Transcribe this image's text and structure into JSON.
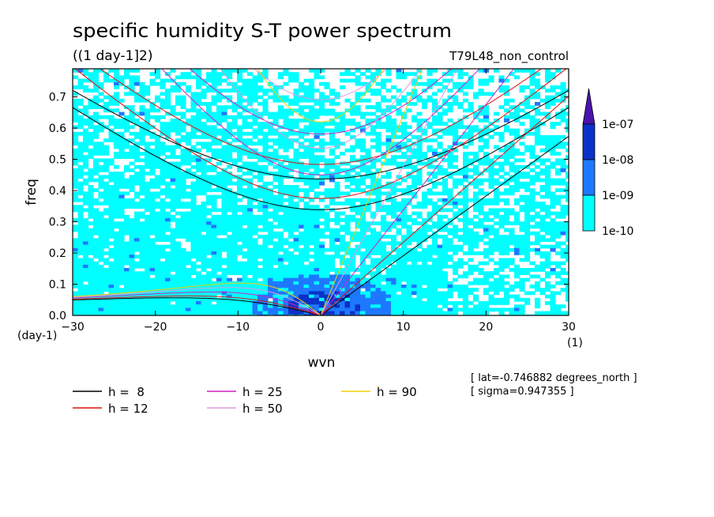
{
  "title": "specific humidity S-T power spectrum",
  "subtitle": "((1 day-1]2)",
  "run_label": "T79L48_non_control",
  "info": [
    "[ lat=-0.746882 degrees_north ]",
    "[ sigma=0.947355 ]"
  ],
  "colorbar": {
    "levels": [
      "1e-10",
      "1e-09",
      "1e-08",
      "1e-07"
    ],
    "colors": [
      "#00ffff",
      "#1e78ff",
      "#0a32c8",
      "#4b14aa"
    ]
  },
  "chart_data": {
    "type": "heatmap",
    "xlabel": "wvn",
    "ylabel": "freq",
    "x_unit": "(1)",
    "y_unit": "(day-1)",
    "xlim": [
      -30,
      30
    ],
    "ylim": [
      0,
      0.79
    ],
    "xticks": [
      -30,
      -20,
      -10,
      0,
      10,
      20,
      30
    ],
    "xtick_labels": [
      "−30",
      "−20",
      "−10",
      "0",
      "10",
      "20",
      "30"
    ],
    "yticks": [
      0,
      0.1,
      0.2,
      0.3,
      0.4,
      0.5,
      0.6,
      0.7
    ],
    "ytick_labels": [
      "0.0",
      "0.1",
      "0.2",
      "0.3",
      "0.4",
      "0.5",
      "0.6",
      "0.7"
    ],
    "series": [
      {
        "name": "h =  8",
        "h": 8,
        "color": "#000000"
      },
      {
        "name": "h = 12",
        "h": 12,
        "color": "#e01010"
      },
      {
        "name": "h = 25",
        "h": 25,
        "color": "#d020c0"
      },
      {
        "name": "h = 50",
        "h": 50,
        "color": "#dc9cdc"
      },
      {
        "name": "h = 90",
        "h": 90,
        "color": "#f0d000"
      }
    ],
    "curve_families": [
      {
        "kind": "kelvin",
        "n": -1
      },
      {
        "kind": "rossby",
        "n": 1
      },
      {
        "kind": "inertia-gravity",
        "n": 1
      },
      {
        "kind": "inertia-gravity",
        "n": 2
      }
    ]
  }
}
